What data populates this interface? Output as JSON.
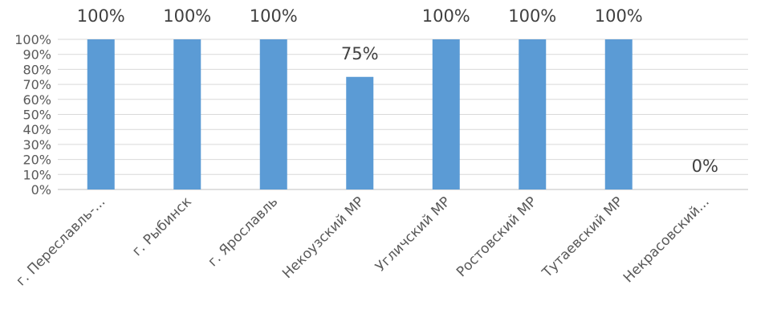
{
  "chart_data": {
    "type": "bar",
    "categories": [
      "г. Переславль-...",
      "г. Рыбинск",
      "г. Ярославль",
      "Некоузский МР",
      "Угличский МР",
      "Ростовский МР",
      "Тутаевский МР",
      "Некрасовский..."
    ],
    "series": [
      {
        "values": [
          100,
          100,
          100,
          75,
          100,
          100,
          100,
          0
        ]
      }
    ],
    "data_labels": [
      "100%",
      "100%",
      "100%",
      "75%",
      "100%",
      "100%",
      "100%",
      "0%"
    ],
    "y_ticks": [
      "0%",
      "10%",
      "20%",
      "30%",
      "40%",
      "50%",
      "60%",
      "70%",
      "80%",
      "90%",
      "100%"
    ],
    "ylim": [
      0,
      100
    ],
    "grid": true,
    "legend": "none",
    "title": "",
    "xlabel": "",
    "ylabel": "",
    "colors": {
      "bar": "#5B9BD5",
      "grid": "#D9D9D9",
      "axis": "#BFBFBF",
      "text": "#404040"
    }
  }
}
